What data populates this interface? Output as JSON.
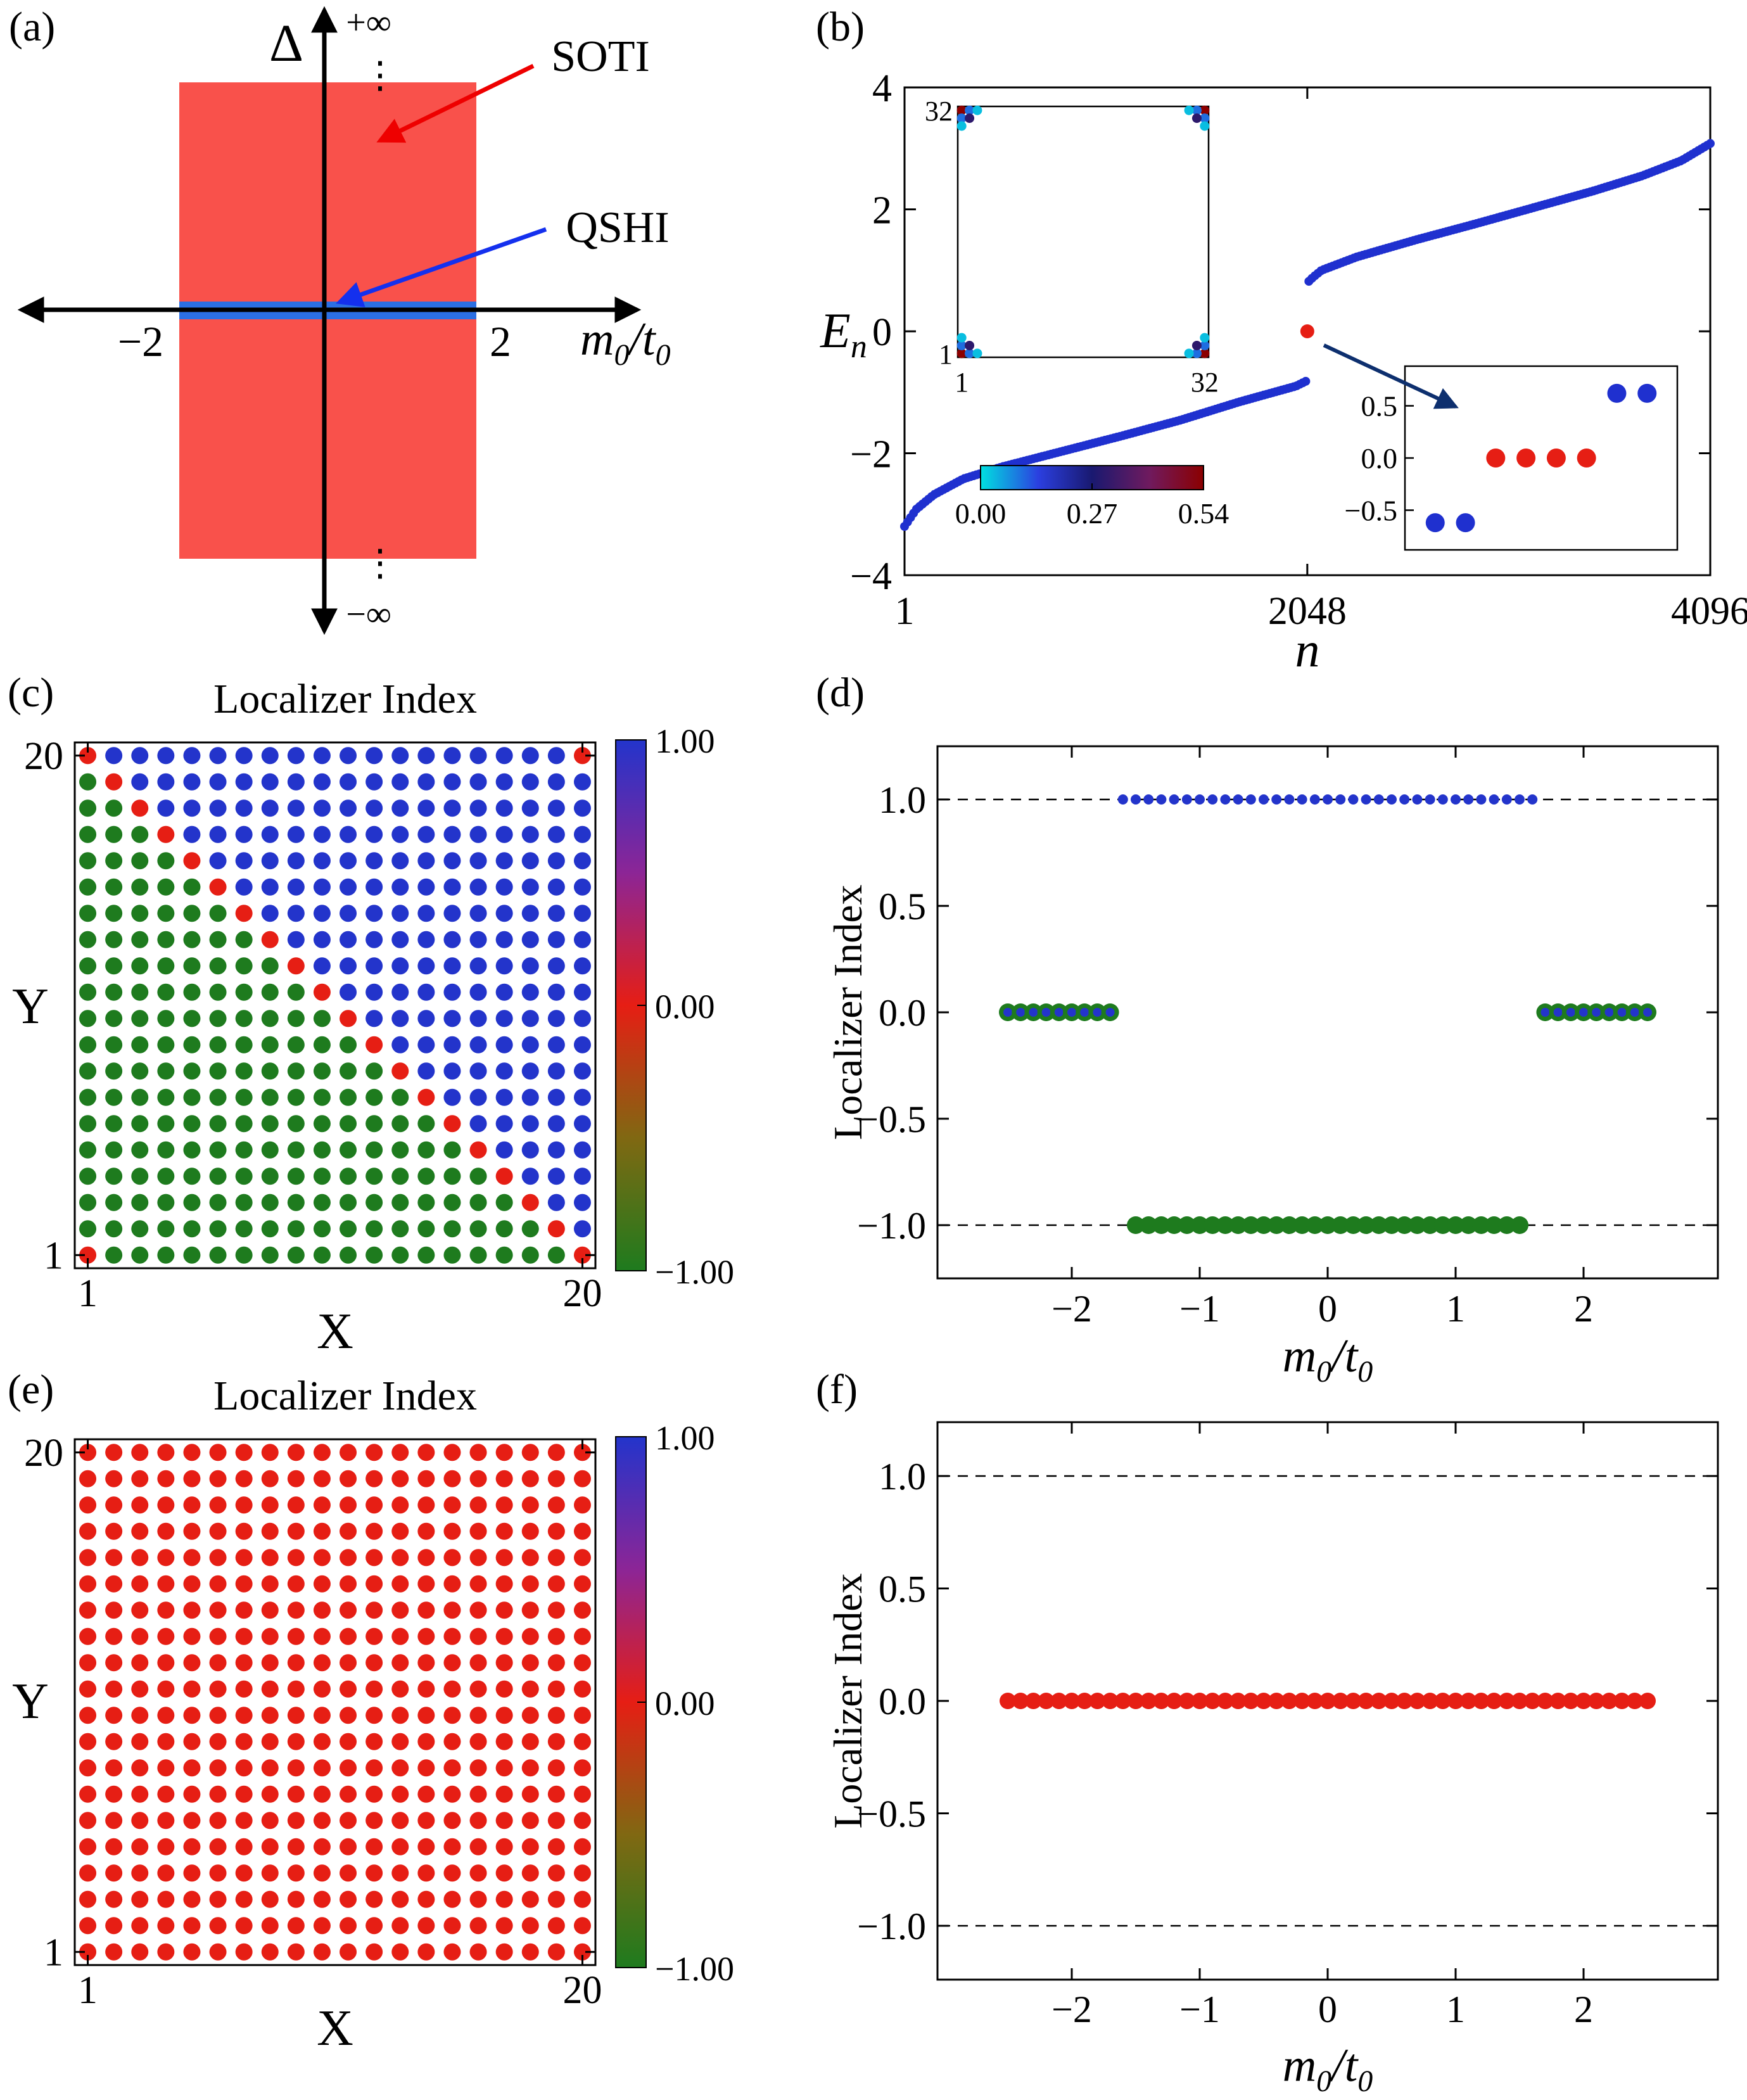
{
  "panel_a": {
    "label": "(a)",
    "delta": "Δ",
    "plus_inf": "+∞",
    "minus_inf": "−∞",
    "dots": "⋮",
    "tick_left": "−2",
    "tick_right": "2",
    "soti_label": "SOTI",
    "qshi_label": "QSHI",
    "colors": {
      "soti_region": "#f9514b",
      "qshi_region": "#2b6fe3",
      "soti_text": "#ee0000",
      "qshi_text": "#1430ee",
      "axis": "#000000"
    }
  },
  "panel_b": {
    "label": "(b)",
    "inset_arrow_color": "#0d2f6e"
  },
  "panel_c": {
    "label": "(c)",
    "title": "Localizer Index"
  },
  "panel_d": {
    "label": "(d)",
    "ylabel": "Localizer Index"
  },
  "panel_e": {
    "label": "(e)",
    "title": "Localizer Index"
  },
  "panel_f": {
    "label": "(f)",
    "ylabel": "Localizer Index"
  },
  "labels": {
    "E": "E",
    "E_sub": "n",
    "n": "n",
    "m": "m",
    "m_sub": "0",
    "slash": "/",
    "t": "t",
    "t_sub": "0",
    "X": "X",
    "Y": "Y"
  },
  "chart_data": [
    {
      "id": "a",
      "type": "area",
      "title": "phase diagram",
      "xlabel": "m0/t0",
      "ylabel": "Delta",
      "x_ticks": [
        "−2",
        "2"
      ],
      "x_tick_vals": [
        -2,
        2
      ],
      "regions": [
        {
          "name": "SOTI",
          "color": "#f9514b",
          "x_range": [
            -2,
            2
          ],
          "y_range": "all Delta ≠ 0 up to ±∞"
        },
        {
          "name": "QSHI",
          "color": "#2b6fe3",
          "x_range": [
            -2,
            2
          ],
          "y_range": "Delta = 0"
        }
      ]
    },
    {
      "id": "b",
      "type": "scatter",
      "xlabel": "n",
      "ylabel": "E_n",
      "xlim": [
        1,
        4096
      ],
      "ylim": [
        -4,
        4
      ],
      "x_ticks": [
        "1",
        "2048",
        "4096"
      ],
      "x_tick_vals": [
        1,
        2048,
        4096
      ],
      "y_ticks": [
        "4",
        "2",
        "0",
        "−2",
        "−4"
      ],
      "y_tick_vals": [
        4,
        2,
        0,
        -2,
        -4
      ],
      "series": [
        {
          "name": "negative-energy band",
          "color": "#1f30cf",
          "r": 7,
          "count": 135,
          "anchor_n": [
            1,
            60,
            150,
            300,
            500,
            800,
            1100,
            1400,
            1700,
            1900,
            1990,
            2040
          ],
          "anchor_E": [
            -3.2,
            -2.92,
            -2.68,
            -2.42,
            -2.22,
            -1.97,
            -1.72,
            -1.46,
            -1.16,
            -0.98,
            -0.9,
            -0.82
          ]
        },
        {
          "name": "positive-energy band",
          "color": "#1f30cf",
          "r": 7,
          "count": 135,
          "anchor_n": [
            2056,
            2075,
            2120,
            2300,
            2600,
            2900,
            3200,
            3500,
            3750,
            3950,
            4096
          ],
          "anchor_E": [
            0.82,
            0.88,
            1.0,
            1.22,
            1.5,
            1.76,
            2.03,
            2.3,
            2.55,
            2.8,
            3.08
          ]
        },
        {
          "name": "zero-energy corner modes",
          "color": "#e61e14",
          "r": 11,
          "n": [
            2048
          ],
          "E": [
            0
          ]
        }
      ],
      "inset_lattice": {
        "lattice_size": 32,
        "x_ticks": [
          "1",
          "32"
        ],
        "y_ticks": [
          "1",
          "32"
        ],
        "colorbar": {
          "tick_labels": [
            "0.00",
            "0.27",
            "0.54"
          ],
          "tick_vals": [
            0,
            0.27,
            0.54
          ],
          "stops": [
            {
              "v": 0.0,
              "c": "#00e0e0"
            },
            {
              "v": 0.14,
              "c": "#2b3fe0"
            },
            {
              "v": 0.27,
              "c": "#191970"
            },
            {
              "v": 0.41,
              "c": "#701a5e"
            },
            {
              "v": 0.54,
              "c": "#8b0000"
            }
          ]
        },
        "corner_sites": [
          {
            "dx": 0,
            "dy": 0,
            "v": 0.54
          },
          {
            "dx": 1,
            "dy": 0,
            "v": 0.1
          },
          {
            "dx": 0,
            "dy": 1,
            "v": 0.1
          },
          {
            "dx": 1,
            "dy": 1,
            "v": 0.3
          },
          {
            "dx": 2,
            "dy": 0,
            "v": 0.03
          },
          {
            "dx": 0,
            "dy": 2,
            "v": 0.03
          }
        ],
        "corners": [
          "bottom-left",
          "bottom-right",
          "top-left",
          "top-right"
        ]
      },
      "inset_zoom": {
        "y_ticks": [
          "0.5",
          "0.0",
          "−0.5"
        ],
        "y_tick_vals": [
          0.5,
          0.0,
          -0.5
        ],
        "series": [
          {
            "name": "in-gap edge states",
            "color": "#1f30cf",
            "r": 15,
            "points": [
              [
                1,
                -0.62
              ],
              [
                2,
                -0.62
              ],
              [
                7,
                0.62
              ],
              [
                8,
                0.62
              ]
            ]
          },
          {
            "name": "zero-energy corner modes",
            "color": "#e61e14",
            "r": 15,
            "points": [
              [
                3,
                0
              ],
              [
                4,
                0
              ],
              [
                5,
                0
              ],
              [
                6,
                0
              ]
            ]
          }
        ]
      }
    },
    {
      "id": "c",
      "type": "scatter",
      "title": "Localizer Index",
      "xlabel": "X",
      "ylabel": "Y",
      "grid": 20,
      "x_ticks": [
        "1",
        "20"
      ],
      "x_tick_vals": [
        1,
        20
      ],
      "y_ticks": [
        "1",
        "20"
      ],
      "y_tick_vals": [
        1,
        20
      ],
      "rule": "upper-right triangle index +1 (blue), lower-left triangle index −1 (green), anti-diagonal and corners index 0 (red)",
      "values": {
        "upper_right": 1,
        "lower_left": -1,
        "boundary": 0
      },
      "zero_points": [
        [
          1,
          20
        ],
        [
          2,
          19
        ],
        [
          3,
          18
        ],
        [
          4,
          17
        ],
        [
          5,
          16
        ],
        [
          6,
          15
        ],
        [
          7,
          14
        ],
        [
          8,
          13
        ],
        [
          9,
          12
        ],
        [
          10,
          11
        ],
        [
          11,
          10
        ],
        [
          12,
          9
        ],
        [
          13,
          8
        ],
        [
          14,
          7
        ],
        [
          15,
          6
        ],
        [
          16,
          5
        ],
        [
          17,
          4
        ],
        [
          18,
          3
        ],
        [
          19,
          2
        ],
        [
          20,
          1
        ],
        [
          1,
          1
        ],
        [
          20,
          20
        ]
      ],
      "colors": {
        "plus_one": "#2334cb",
        "zero": "#e61e14",
        "minus_one": "#1e7b1e"
      },
      "colorbar": {
        "tick_labels": [
          "1.00",
          "0.00",
          "−1.00"
        ],
        "tick_vals": [
          1,
          0,
          -1
        ],
        "stops": [
          {
            "v": 1.0,
            "c": "#2334cb"
          },
          {
            "v": 0.5,
            "c": "#8c2596"
          },
          {
            "v": 0.0,
            "c": "#e61e14"
          },
          {
            "v": -0.5,
            "c": "#806812"
          },
          {
            "v": -1.0,
            "c": "#1e7b1e"
          }
        ]
      }
    },
    {
      "id": "d",
      "type": "scatter",
      "xlabel": "m0/t0",
      "ylabel": "Localizer Index",
      "xlim": [
        -3,
        3
      ],
      "ylim": [
        -1.25,
        1.25
      ],
      "x_ticks": [
        "−2",
        "−1",
        "0",
        "1",
        "2"
      ],
      "x_tick_vals": [
        -2,
        -1,
        0,
        1,
        2
      ],
      "y_ticks": [
        "1.0",
        "0.5",
        "0.0",
        "−0.5",
        "−1.0"
      ],
      "y_tick_vals": [
        1.0,
        0.5,
        0.0,
        -0.5,
        -1.0
      ],
      "dashed_lines": [
        1.0,
        -1.0
      ],
      "series": [
        {
          "name": "localizer index +1",
          "color": "#2334cb",
          "r": 8,
          "y": 1.0,
          "x": [
            -1.6,
            -1.5,
            -1.4,
            -1.3,
            -1.2,
            -1.1,
            -1.0,
            -0.9,
            -0.8,
            -0.7,
            -0.6,
            -0.5,
            -0.4,
            -0.3,
            -0.2,
            -0.1,
            0.0,
            0.1,
            0.2,
            0.3,
            0.4,
            0.5,
            0.6,
            0.7,
            0.8,
            0.9,
            1.0,
            1.1,
            1.2,
            1.3,
            1.4,
            1.5,
            1.6
          ]
        },
        {
          "name": "localizer index −1",
          "color": "#1e7b1e",
          "r": 14,
          "y": -1.0,
          "x": [
            -1.5,
            -1.4,
            -1.3,
            -1.2,
            -1.1,
            -1.0,
            -0.9,
            -0.8,
            -0.7,
            -0.6,
            -0.5,
            -0.4,
            -0.3,
            -0.2,
            -0.1,
            0.0,
            0.1,
            0.2,
            0.3,
            0.4,
            0.5,
            0.6,
            0.7,
            0.8,
            0.9,
            1.0,
            1.1,
            1.2,
            1.3,
            1.4,
            1.5
          ]
        },
        {
          "name": "localizer index 0 (trivial)",
          "color": "#1e7b1e",
          "r": 14,
          "inner_color": "#2334cb",
          "inner_r": 7,
          "y": 0.0,
          "x": [
            -2.5,
            -2.4,
            -2.3,
            -2.2,
            -2.1,
            -2.0,
            -1.9,
            -1.8,
            -1.7,
            1.7,
            1.8,
            1.9,
            2.0,
            2.1,
            2.2,
            2.3,
            2.4,
            2.5
          ]
        }
      ]
    },
    {
      "id": "e",
      "type": "scatter",
      "title": "Localizer Index",
      "xlabel": "X",
      "ylabel": "Y",
      "grid": 20,
      "x_ticks": [
        "1",
        "20"
      ],
      "x_tick_vals": [
        1,
        20
      ],
      "y_ticks": [
        "1",
        "20"
      ],
      "y_tick_vals": [
        1,
        20
      ],
      "all_value": 0,
      "color": "#e61e14",
      "colorbar": {
        "tick_labels": [
          "1.00",
          "0.00",
          "−1.00"
        ],
        "tick_vals": [
          1,
          0,
          -1
        ],
        "stops": [
          {
            "v": 1.0,
            "c": "#2334cb"
          },
          {
            "v": 0.5,
            "c": "#8c2596"
          },
          {
            "v": 0.0,
            "c": "#e61e14"
          },
          {
            "v": -0.5,
            "c": "#806812"
          },
          {
            "v": -1.0,
            "c": "#1e7b1e"
          }
        ]
      }
    },
    {
      "id": "f",
      "type": "scatter",
      "xlabel": "m0/t0",
      "ylabel": "Localizer Index",
      "xlim": [
        -3,
        3
      ],
      "ylim": [
        -1.25,
        1.25
      ],
      "x_ticks": [
        "−2",
        "−1",
        "0",
        "1",
        "2"
      ],
      "x_tick_vals": [
        -2,
        -1,
        0,
        1,
        2
      ],
      "y_ticks": [
        "1.0",
        "0.5",
        "0.0",
        "−0.5",
        "−1.0"
      ],
      "y_tick_vals": [
        1.0,
        0.5,
        0.0,
        -0.5,
        -1.0
      ],
      "dashed_lines": [
        1.0,
        -1.0
      ],
      "series": [
        {
          "name": "localizer index 0",
          "color": "#e61e14",
          "r": 13,
          "y": 0.0,
          "x": [
            -2.5,
            -2.4,
            -2.3,
            -2.2,
            -2.1,
            -2.0,
            -1.9,
            -1.8,
            -1.7,
            -1.6,
            -1.5,
            -1.4,
            -1.3,
            -1.2,
            -1.1,
            -1.0,
            -0.9,
            -0.8,
            -0.7,
            -0.6,
            -0.5,
            -0.4,
            -0.3,
            -0.2,
            -0.1,
            0.0,
            0.1,
            0.2,
            0.3,
            0.4,
            0.5,
            0.6,
            0.7,
            0.8,
            0.9,
            1.0,
            1.1,
            1.2,
            1.3,
            1.4,
            1.5,
            1.6,
            1.7,
            1.8,
            1.9,
            2.0,
            2.1,
            2.2,
            2.3,
            2.4,
            2.5
          ]
        }
      ]
    }
  ]
}
